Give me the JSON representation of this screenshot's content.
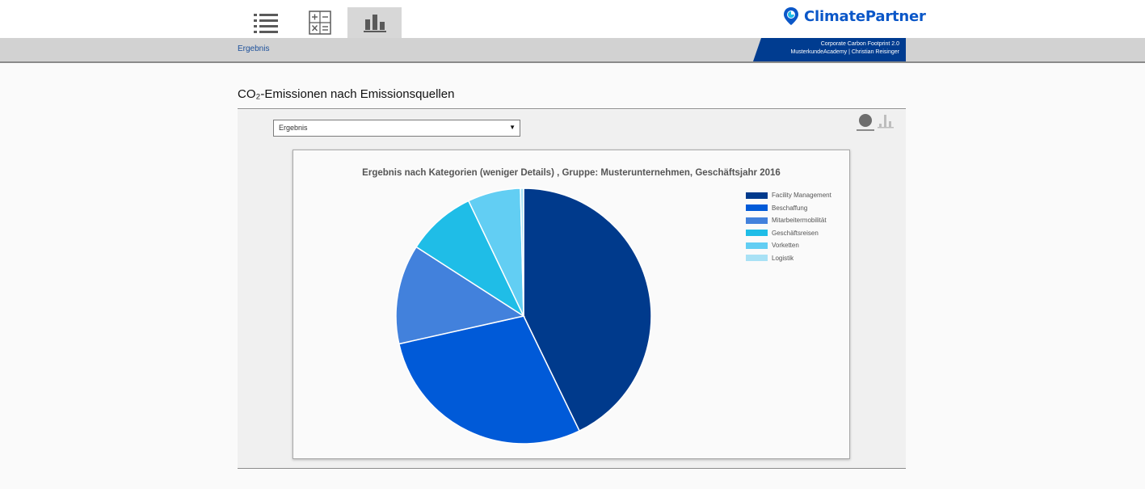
{
  "nav": {
    "tabs": [
      {
        "name": "list",
        "icon": "list-icon",
        "active": false
      },
      {
        "name": "calculator",
        "icon": "calculator-icon",
        "active": false
      },
      {
        "name": "results",
        "icon": "bar-chart-icon",
        "active": true
      }
    ],
    "logo_text": "ClimatePartner",
    "logo_icon": "location-pin-icon"
  },
  "subbar": {
    "breadcrumb": "Ergebnis",
    "project_line1": "Corporate Carbon Footprint 2.0",
    "project_line2": "MusterkundeAcademy | Christian Reisinger"
  },
  "page": {
    "title": "CO₂-Emissionen nach Emissionsquellen"
  },
  "controls": {
    "select_value": "Ergebnis",
    "view_icons": [
      "pie-view-icon",
      "bar-view-icon"
    ]
  },
  "colors": {
    "accent": "#003c90",
    "logo": "#0b57c8"
  },
  "chart_data": {
    "type": "pie",
    "title": "Ergebnis nach Kategorien (weniger Details) , Gruppe: Musterunternehmen, Geschäftsjahr 2016",
    "legend_position": "top-right",
    "categories": [
      "Facility Management",
      "Beschaffung",
      "Mitarbeitermobilität",
      "Geschäftsreisen",
      "Vorketten",
      "Logistik"
    ],
    "values": [
      42.8,
      28.7,
      12.6,
      8.8,
      6.7,
      0.4
    ],
    "colors": [
      "#003a8c",
      "#005ad8",
      "#4281dc",
      "#1fbde7",
      "#62cef3",
      "#a8e1f5"
    ]
  }
}
